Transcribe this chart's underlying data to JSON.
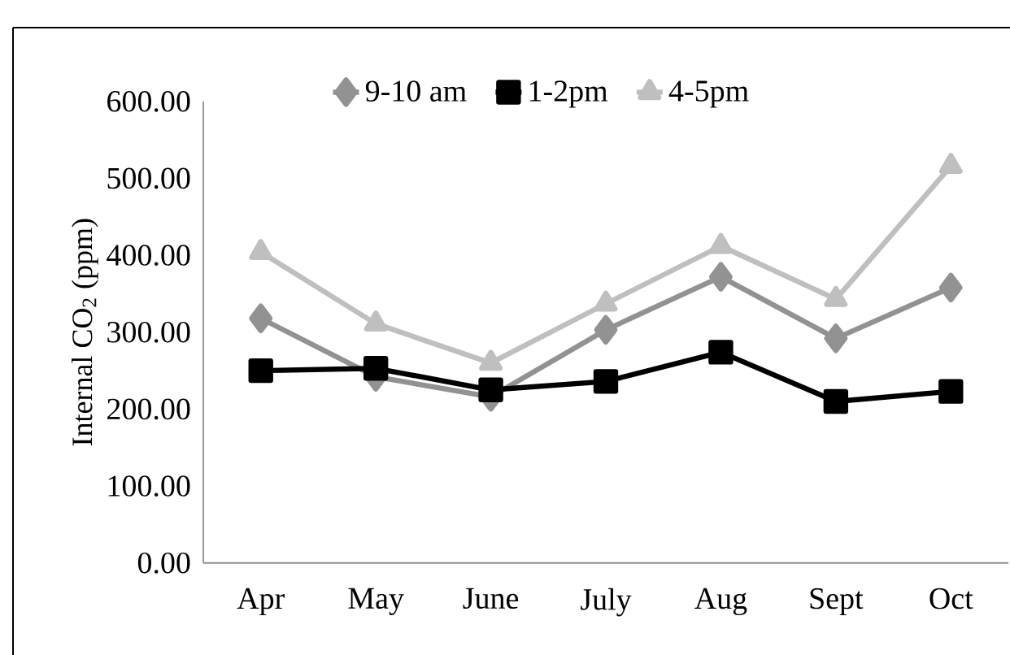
{
  "chart_data": {
    "type": "line",
    "ylabel": "Internal CO$_{2}$ (ppm)",
    "categories": [
      "Apr",
      "May",
      "June",
      "July",
      "Aug",
      "Sept",
      "Oct"
    ],
    "series": [
      {
        "name": "9-10 am",
        "color": "#929292",
        "marker": "diamond",
        "values": [
          318,
          242,
          216,
          303,
          372,
          292,
          358
        ]
      },
      {
        "name": "1-2pm",
        "color": "#000000",
        "marker": "square",
        "values": [
          250,
          253,
          225,
          236,
          274,
          210,
          223
        ]
      },
      {
        "name": "4-5pm",
        "color": "#bfbfbf",
        "marker": "triangle",
        "values": [
          404,
          311,
          260,
          337,
          412,
          343,
          516
        ]
      }
    ],
    "ylim": [
      0,
      600
    ],
    "yticks": [
      {
        "value": 0,
        "label": "0.00"
      },
      {
        "value": 100,
        "label": "100.00"
      },
      {
        "value": 200,
        "label": "200.00"
      },
      {
        "value": 300,
        "label": "300.00"
      },
      {
        "value": 400,
        "label": "400.00"
      },
      {
        "value": 500,
        "label": "500.00"
      },
      {
        "value": 600,
        "label": "600.00"
      }
    ],
    "grid": false,
    "legend": "top",
    "line_style": "solid"
  }
}
